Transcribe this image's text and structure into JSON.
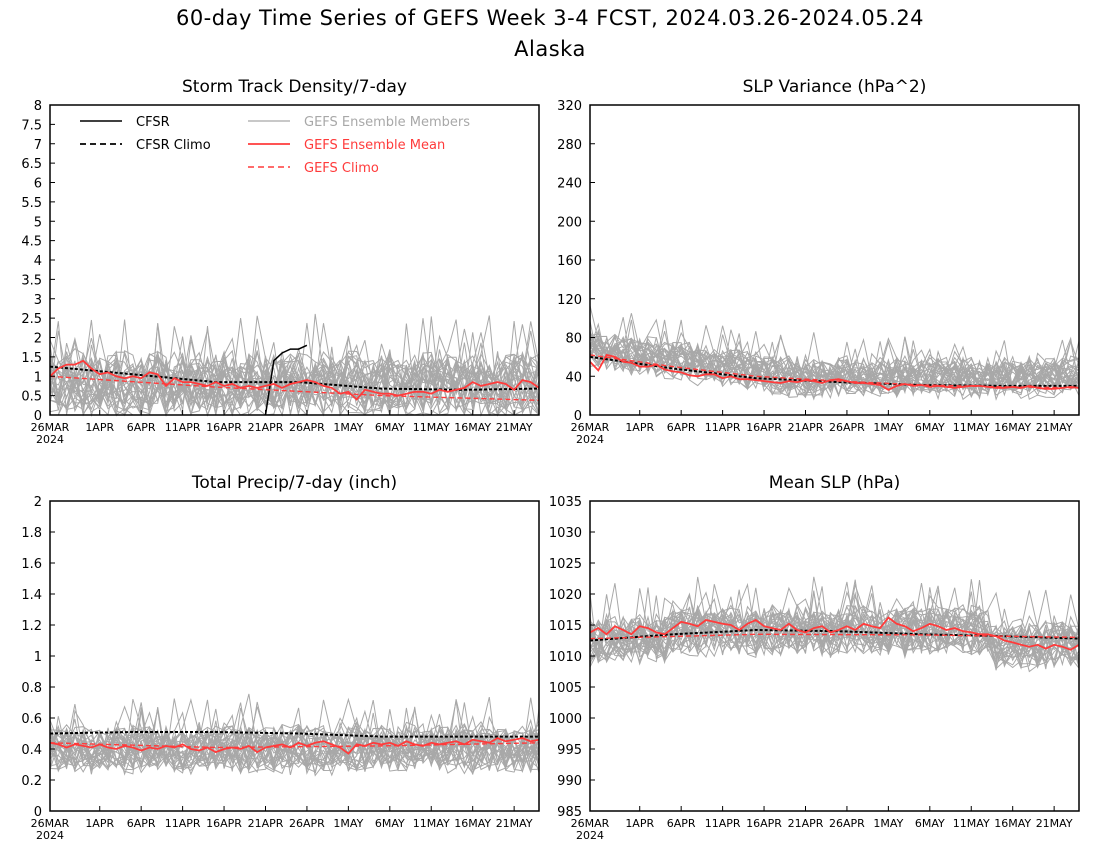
{
  "figure": {
    "title": "60-day Time Series of GEFS Week 3-4 FCST, 2024.03.26-2024.05.24",
    "subtitle": "Alaska"
  },
  "colors": {
    "cfsr": "#000000",
    "members": "#a8a8a8",
    "ens_mean": "#ff3b3b",
    "gefs_climo": "#ff3b3b",
    "axes": "#000000"
  },
  "legend": {
    "cfsr": "CFSR",
    "cfsr_climo": "CFSR Climo",
    "members": "GEFS Ensemble Members",
    "ens_mean": "GEFS Ensemble Mean",
    "gefs_climo": "GEFS Climo"
  },
  "x_axis": {
    "ticks": [
      {
        "day": 0,
        "label": "26MAR"
      },
      {
        "day": 6,
        "label": "1APR"
      },
      {
        "day": 11,
        "label": "6APR"
      },
      {
        "day": 16,
        "label": "11APR"
      },
      {
        "day": 21,
        "label": "16APR"
      },
      {
        "day": 26,
        "label": "21APR"
      },
      {
        "day": 31,
        "label": "26APR"
      },
      {
        "day": 36,
        "label": "1MAY"
      },
      {
        "day": 41,
        "label": "6MAY"
      },
      {
        "day": 46,
        "label": "11MAY"
      },
      {
        "day": 51,
        "label": "16MAY"
      },
      {
        "day": 56,
        "label": "21MAY"
      }
    ],
    "year_label": "2024",
    "range": [
      0,
      59
    ]
  },
  "chart_data": [
    {
      "type": "line",
      "title": "Storm Track Density/7-day",
      "ylim": [
        0,
        8
      ],
      "yticks": [
        0,
        0.5,
        1,
        1.5,
        2,
        2.5,
        3,
        3.5,
        4,
        4.5,
        5,
        5.5,
        6,
        6.5,
        7,
        7.5,
        8
      ],
      "members": {
        "count": 30,
        "base": 0.75,
        "spread": 0.75,
        "min": 0,
        "max": 3.7
      },
      "series": [
        {
          "name": "CFSR",
          "x": [
            26,
            27,
            28,
            29,
            30,
            31
          ],
          "y": [
            0,
            1.4,
            1.6,
            1.7,
            1.7,
            1.8
          ]
        },
        {
          "name": "CFSR Climo",
          "x": [
            0,
            10,
            20,
            30,
            40,
            50,
            59
          ],
          "y": [
            1.25,
            1.05,
            0.85,
            0.85,
            0.68,
            0.65,
            0.68
          ]
        },
        {
          "name": "GEFS Ensemble Mean",
          "x": [
            0,
            1,
            2,
            3,
            4,
            5,
            6,
            7,
            8,
            9,
            10,
            11,
            12,
            13,
            14,
            15,
            16,
            17,
            18,
            19,
            20,
            21,
            22,
            23,
            24,
            25,
            26,
            27,
            28,
            29,
            30,
            31,
            32,
            33,
            34,
            35,
            36,
            37,
            38,
            39,
            40,
            41,
            42,
            43,
            44,
            45,
            46,
            47,
            48,
            49,
            50,
            51,
            52,
            53,
            54,
            55,
            56,
            57,
            58,
            59
          ],
          "y": [
            1.0,
            1.2,
            1.3,
            1.3,
            1.4,
            1.2,
            1.05,
            1.1,
            1.0,
            0.95,
            1.0,
            0.95,
            1.1,
            1.05,
            0.75,
            0.95,
            0.85,
            0.85,
            0.8,
            0.75,
            0.85,
            0.75,
            0.8,
            0.7,
            0.75,
            0.7,
            0.75,
            0.8,
            0.7,
            0.8,
            0.85,
            0.9,
            0.85,
            0.75,
            0.7,
            0.55,
            0.6,
            0.4,
            0.65,
            0.6,
            0.55,
            0.55,
            0.5,
            0.55,
            0.6,
            0.6,
            0.55,
            0.65,
            0.6,
            0.65,
            0.7,
            0.85,
            0.75,
            0.8,
            0.85,
            0.8,
            0.65,
            0.9,
            0.85,
            0.7
          ]
        },
        {
          "name": "GEFS Climo",
          "x": [
            0,
            20,
            40,
            59
          ],
          "y": [
            1.0,
            0.72,
            0.5,
            0.38
          ]
        }
      ]
    },
    {
      "type": "line",
      "title": "SLP Variance (hPa^2)",
      "ylim": [
        0,
        320
      ],
      "yticks": [
        0,
        40,
        80,
        120,
        160,
        200,
        240,
        280,
        320
      ],
      "members": {
        "count": 30,
        "base": 38,
        "spread": 18,
        "min": 8,
        "max": 160
      },
      "series": [
        {
          "name": "CFSR Climo",
          "x": [
            0,
            10,
            20,
            30,
            40,
            50,
            59
          ],
          "y": [
            60,
            48,
            38,
            34,
            31,
            30,
            30
          ]
        },
        {
          "name": "GEFS Ensemble Mean",
          "x": [
            0,
            1,
            2,
            3,
            4,
            5,
            6,
            7,
            8,
            9,
            10,
            11,
            12,
            13,
            14,
            15,
            16,
            17,
            18,
            19,
            20,
            21,
            22,
            23,
            24,
            25,
            26,
            27,
            28,
            29,
            30,
            31,
            32,
            33,
            34,
            35,
            36,
            37,
            38,
            39,
            40,
            41,
            42,
            43,
            44,
            45,
            46,
            47,
            48,
            49,
            50,
            51,
            52,
            53,
            54,
            55,
            56,
            57,
            58,
            59
          ],
          "y": [
            55,
            46,
            62,
            60,
            55,
            54,
            50,
            50,
            52,
            47,
            45,
            44,
            41,
            40,
            42,
            42,
            38,
            40,
            37,
            37,
            36,
            35,
            34,
            33,
            35,
            34,
            36,
            35,
            33,
            36,
            37,
            35,
            33,
            33,
            32,
            31,
            26,
            30,
            32,
            30,
            31,
            29,
            30,
            29,
            28,
            29,
            30,
            30,
            29,
            28,
            28,
            29,
            28,
            30,
            28,
            27,
            27,
            28,
            29,
            28
          ]
        },
        {
          "name": "GEFS Climo",
          "x": [
            0,
            10,
            20,
            30,
            40,
            50,
            59
          ],
          "y": [
            62,
            50,
            40,
            35,
            31,
            29,
            28
          ]
        }
      ]
    },
    {
      "type": "line",
      "title": "Total Precip/7-day (inch)",
      "ylim": [
        0,
        2
      ],
      "yticks": [
        0,
        0.2,
        0.4,
        0.6,
        0.8,
        1,
        1.2,
        1.4,
        1.6,
        1.8,
        2
      ],
      "members": {
        "count": 30,
        "base": 0.4,
        "spread": 0.14,
        "min": 0.05,
        "max": 1.02
      },
      "series": [
        {
          "name": "CFSR Climo",
          "x": [
            0,
            10,
            20,
            30,
            40,
            50,
            59
          ],
          "y": [
            0.5,
            0.51,
            0.51,
            0.5,
            0.48,
            0.48,
            0.48
          ]
        },
        {
          "name": "GEFS Ensemble Mean",
          "x": [
            0,
            1,
            2,
            3,
            4,
            5,
            6,
            7,
            8,
            9,
            10,
            11,
            12,
            13,
            14,
            15,
            16,
            17,
            18,
            19,
            20,
            21,
            22,
            23,
            24,
            25,
            26,
            27,
            28,
            29,
            30,
            31,
            32,
            33,
            34,
            35,
            36,
            37,
            38,
            39,
            40,
            41,
            42,
            43,
            44,
            45,
            46,
            47,
            48,
            49,
            50,
            51,
            52,
            53,
            54,
            55,
            56,
            57,
            58,
            59
          ],
          "y": [
            0.44,
            0.43,
            0.41,
            0.43,
            0.42,
            0.41,
            0.43,
            0.41,
            0.4,
            0.42,
            0.41,
            0.39,
            0.41,
            0.4,
            0.42,
            0.41,
            0.43,
            0.4,
            0.39,
            0.41,
            0.38,
            0.4,
            0.41,
            0.4,
            0.42,
            0.38,
            0.41,
            0.42,
            0.43,
            0.41,
            0.44,
            0.42,
            0.44,
            0.45,
            0.43,
            0.41,
            0.37,
            0.43,
            0.42,
            0.44,
            0.43,
            0.44,
            0.42,
            0.45,
            0.43,
            0.42,
            0.44,
            0.43,
            0.44,
            0.45,
            0.43,
            0.46,
            0.45,
            0.44,
            0.47,
            0.45,
            0.46,
            0.47,
            0.45,
            0.46
          ]
        },
        {
          "name": "GEFS Climo",
          "x": [
            0,
            20,
            40,
            59
          ],
          "y": [
            0.44,
            0.41,
            0.42,
            0.44
          ]
        }
      ]
    },
    {
      "type": "line",
      "title": "Mean SLP (hPa)",
      "ylim": [
        985,
        1035
      ],
      "yticks": [
        985,
        990,
        995,
        1000,
        1005,
        1010,
        1015,
        1020,
        1025,
        1030,
        1035
      ],
      "members": {
        "count": 30,
        "base": 1013.5,
        "spread": 3.6,
        "min": 1004,
        "max": 1025.5
      },
      "series": [
        {
          "name": "CFSR Climo",
          "x": [
            0,
            10,
            20,
            30,
            40,
            50,
            59
          ],
          "y": [
            1012.5,
            1013.5,
            1014.2,
            1014,
            1013.5,
            1013.2,
            1012.8
          ]
        },
        {
          "name": "GEFS Ensemble Mean",
          "x": [
            0,
            1,
            2,
            3,
            4,
            5,
            6,
            7,
            8,
            9,
            10,
            11,
            12,
            13,
            14,
            15,
            16,
            17,
            18,
            19,
            20,
            21,
            22,
            23,
            24,
            25,
            26,
            27,
            28,
            29,
            30,
            31,
            32,
            33,
            34,
            35,
            36,
            37,
            38,
            39,
            40,
            41,
            42,
            43,
            44,
            45,
            46,
            47,
            48,
            49,
            50,
            51,
            52,
            53,
            54,
            55,
            56,
            57,
            58,
            59
          ],
          "y": [
            1013.8,
            1014.5,
            1013.5,
            1014.8,
            1014.2,
            1013.5,
            1014.8,
            1014.5,
            1013.8,
            1013.5,
            1014.5,
            1015.5,
            1015.2,
            1014.8,
            1015.8,
            1015.5,
            1015.2,
            1015,
            1014.2,
            1015.2,
            1015.8,
            1014.8,
            1014.5,
            1014.2,
            1015.2,
            1014.2,
            1013.8,
            1014.5,
            1014.8,
            1013.8,
            1014.2,
            1014.8,
            1014.2,
            1015.2,
            1014.8,
            1014.5,
            1016.2,
            1015.2,
            1014.8,
            1014,
            1014.5,
            1015.2,
            1014.8,
            1014.2,
            1014.5,
            1014,
            1013.8,
            1013.5,
            1013.5,
            1013.2,
            1012.5,
            1012.2,
            1011.8,
            1011.5,
            1011.8,
            1011.2,
            1011.8,
            1011.5,
            1011,
            1011.8
          ]
        },
        {
          "name": "GEFS Climo",
          "x": [
            0,
            20,
            40,
            59
          ],
          "y": [
            1012.8,
            1013.5,
            1013.4,
            1013
          ]
        }
      ]
    }
  ]
}
